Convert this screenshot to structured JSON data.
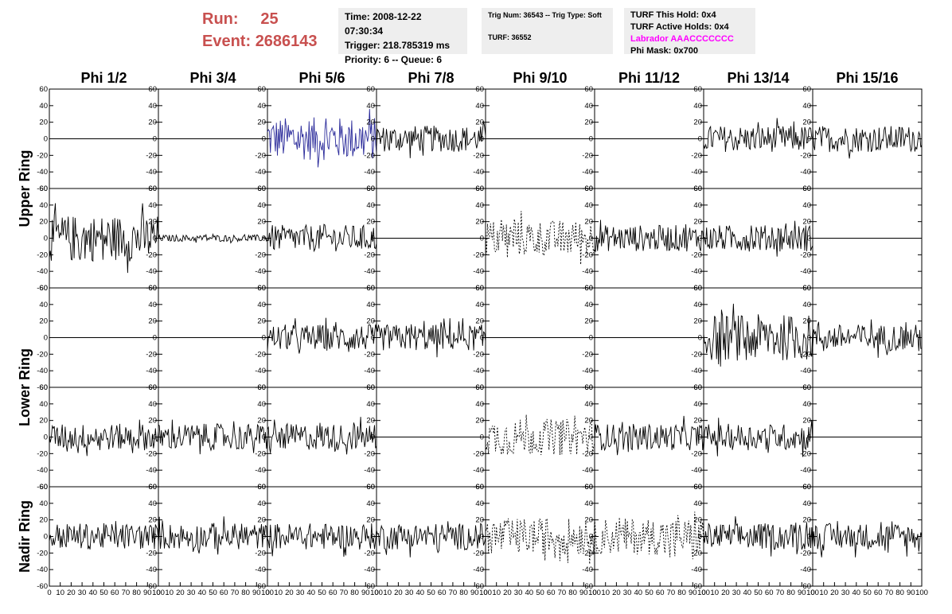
{
  "header": {
    "run_label": "Run:",
    "run_value": "25",
    "event_label": "Event:",
    "event_value": "2686143"
  },
  "info_box_1": {
    "time": "Time: 2008-12-22 07:30:34",
    "trigger": "Trigger: 218.785319 ms",
    "priority": "Priority: 6 -- Queue: 6"
  },
  "info_box_2": {
    "trig_num": "Trig Num: 36543 -- Trig Type: Soft",
    "turf": "TURF: 36552"
  },
  "info_box_3": {
    "turf_this_hold": "TURF This Hold: 0x4",
    "turf_active_holds": "TURF Active Holds: 0x4",
    "labrador": "Labrador AAACCCCCCC",
    "phi_mask": "Phi Mask: 0x700"
  },
  "colors": {
    "header_red": "#c8504f",
    "labrador_magenta": "#ff00ff",
    "highlight_trace": "#2a2a9a",
    "trace": "#000000",
    "box_bg": "#eeeeee"
  },
  "chart_data": {
    "type": "line",
    "columns": [
      "Phi 1/2",
      "Phi 3/4",
      "Phi 5/6",
      "Phi 7/8",
      "Phi 9/10",
      "Phi 11/12",
      "Phi 13/14",
      "Phi 15/16"
    ],
    "rings": [
      "Upper Ring",
      "Lower Ring",
      "Nadir Ring"
    ],
    "rows": 5,
    "xlim": [
      0,
      100
    ],
    "ylim": [
      -60,
      60
    ],
    "x_ticks": [
      "0",
      "10",
      "20",
      "30",
      "40",
      "50",
      "60",
      "70",
      "80",
      "90",
      "100"
    ],
    "y_ticks": [
      "-60",
      "-40",
      "-20",
      "0",
      "20",
      "40",
      "60"
    ],
    "panels": [
      [
        "flat",
        "flat",
        "blue-large",
        "medium",
        "flat",
        "flat",
        "medium",
        "medium"
      ],
      [
        "large",
        "small",
        "medium",
        "flat",
        "dashed",
        "medium",
        "medium",
        "flat"
      ],
      [
        "flat",
        "flat",
        "medium",
        "medium",
        "flat",
        "flat",
        "large",
        "medium"
      ],
      [
        "medium",
        "medium",
        "medium",
        "flat",
        "dashed",
        "medium",
        "medium",
        "flat"
      ],
      [
        "medium",
        "medium",
        "medium",
        "medium",
        "dashed",
        "dashed",
        "medium",
        "medium"
      ]
    ],
    "amplitudes": {
      "flat": 0,
      "small": 4,
      "medium": 16,
      "large": 28,
      "blue-large": 26,
      "dashed": 22
    }
  }
}
